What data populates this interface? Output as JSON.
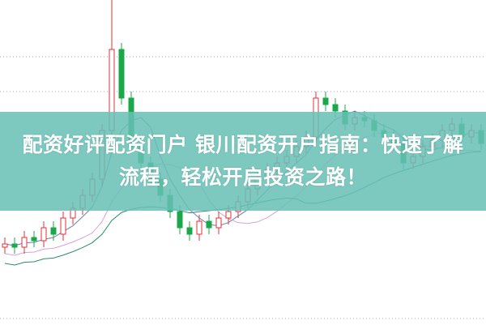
{
  "title": {
    "line1": "配资好评配资门户 银川配资开户指南：快速了解",
    "line2": "流程，轻松开启投资之路！"
  },
  "colors": {
    "banner": "#68c0b6",
    "up": "#e0303a",
    "down": "#1aa84a",
    "ma_short": "#6a7fb0",
    "ma_mid": "#d9a0d9",
    "ma_long": "#2e8a6e"
  },
  "chart_data": {
    "type": "candlestick",
    "closes": [
      25,
      24,
      27,
      26,
      30,
      28,
      33,
      36,
      40,
      45,
      60,
      85,
      70,
      55,
      50,
      45,
      40,
      35,
      30,
      28,
      32,
      30,
      33,
      35,
      38,
      42,
      45,
      48,
      50,
      52,
      55,
      58,
      70,
      68,
      66,
      62,
      64,
      63,
      60,
      58,
      56,
      50,
      52,
      55,
      57,
      60,
      62,
      58,
      60,
      56
    ],
    "grid": true
  }
}
